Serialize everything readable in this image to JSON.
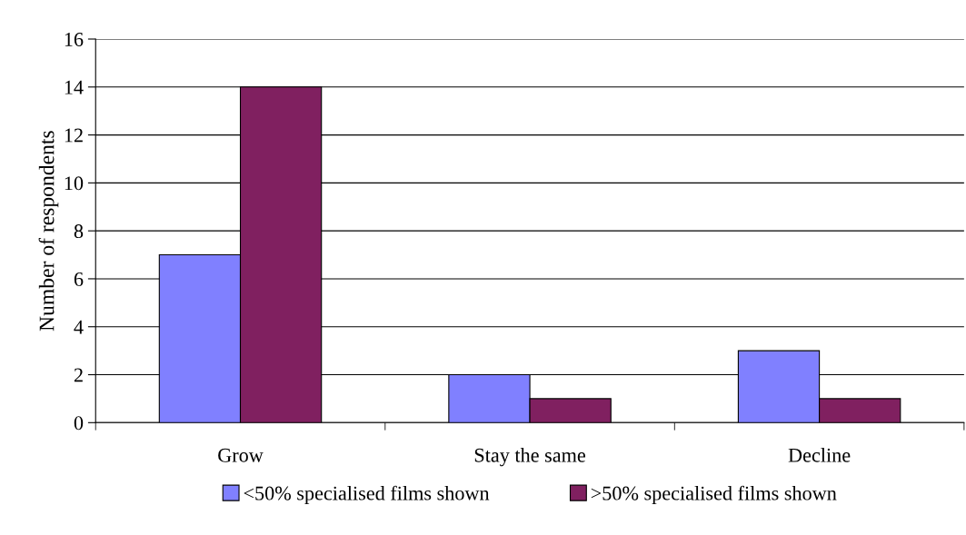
{
  "chart_data": {
    "type": "bar",
    "ylabel": "Number of respondents",
    "categories": [
      "Grow",
      "Stay the same",
      "Decline"
    ],
    "series": [
      {
        "name": "<50% specialised films shown",
        "color": "#8080ff",
        "values": [
          7,
          2,
          3
        ]
      },
      {
        "name": ">50% specialised films shown",
        "color": "#802060",
        "values": [
          14,
          1,
          1
        ]
      }
    ],
    "ylim": [
      0,
      16
    ],
    "yticks": [
      0,
      2,
      4,
      6,
      8,
      10,
      12,
      14,
      16
    ],
    "grid": "y",
    "legend": "bottom"
  }
}
